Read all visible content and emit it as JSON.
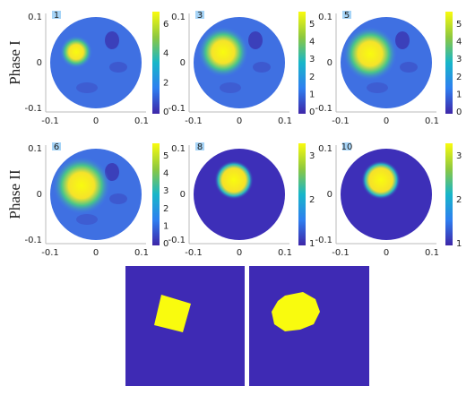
{
  "row_labels": [
    "Phase I",
    "Phase II"
  ],
  "panels": [
    {
      "badge": "1",
      "xticks": [
        "-0.1",
        "0",
        "0.1"
      ],
      "yticks": [
        "0.1",
        "0",
        "-0.1"
      ],
      "colorbar_ticks": [
        "0",
        "2",
        "4",
        "6"
      ]
    },
    {
      "badge": "3",
      "xticks": [
        "-0.1",
        "0",
        "0.1"
      ],
      "yticks": [
        "0.1",
        "0",
        "-0.1"
      ],
      "colorbar_ticks": [
        "0",
        "1",
        "2",
        "3",
        "4",
        "5"
      ]
    },
    {
      "badge": "5",
      "xticks": [
        "-0.1",
        "0",
        "0.1"
      ],
      "yticks": [
        "0.1",
        "0",
        "-0.1"
      ],
      "colorbar_ticks": [
        "0",
        "1",
        "2",
        "3",
        "4",
        "5"
      ]
    },
    {
      "badge": "6",
      "xticks": [
        "-0.1",
        "0",
        "0.1"
      ],
      "yticks": [
        "0.1",
        "0",
        "-0.1"
      ],
      "colorbar_ticks": [
        "0",
        "1",
        "2",
        "3",
        "4",
        "5"
      ]
    },
    {
      "badge": "8",
      "xticks": [
        "-0.1",
        "0",
        "0.1"
      ],
      "yticks": [
        "0.1",
        "0",
        "-0.1"
      ],
      "colorbar_ticks": [
        "1",
        "2",
        "3"
      ]
    },
    {
      "badge": "10",
      "xticks": [
        "-0.1",
        "0",
        "0.1"
      ],
      "yticks": [
        "0.1",
        "0",
        "-0.1"
      ],
      "colorbar_ticks": [
        "1",
        "2",
        "3"
      ]
    }
  ]
}
